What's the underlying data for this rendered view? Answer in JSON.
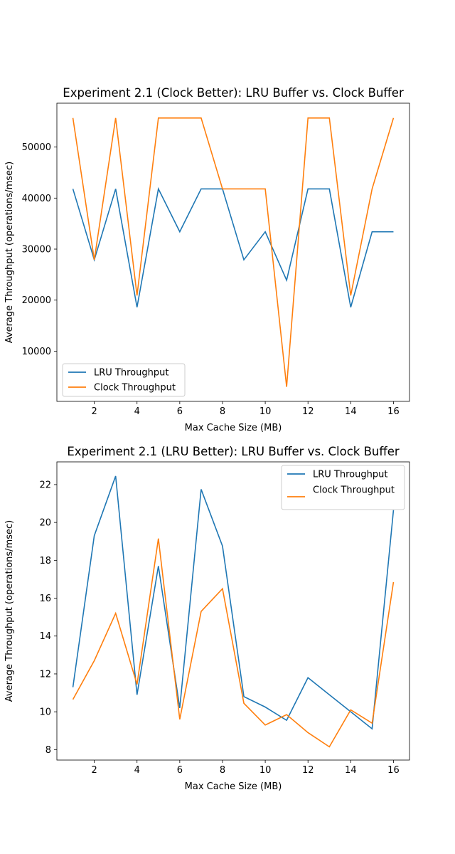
{
  "colors": {
    "lru": "#1f77b4",
    "clock": "#ff7f0e"
  },
  "chart_data": [
    {
      "type": "line",
      "title": "Experiment 2.1 (Clock Better): LRU Buffer vs. Clock Buffer",
      "xlabel": "Max Cache Size (MB)",
      "ylabel": "Average Throughput (operations/msec)",
      "x": [
        1,
        2,
        3,
        4,
        5,
        6,
        7,
        8,
        9,
        10,
        11,
        12,
        13,
        14,
        15,
        16
      ],
      "xticks": [
        2,
        4,
        6,
        8,
        10,
        12,
        14,
        16
      ],
      "yticks": [
        10000,
        20000,
        30000,
        40000,
        50000
      ],
      "xlim": [
        0.25,
        16.75
      ],
      "ylim": [
        150,
        58600
      ],
      "legend_position": "lower-left",
      "grid": false,
      "series": [
        {
          "name": "LRU Throughput",
          "color": "#1f77b4",
          "values": [
            41800,
            27900,
            41800,
            18600,
            41800,
            33400,
            41800,
            41800,
            27900,
            33400,
            23900,
            41800,
            41800,
            18600,
            33400,
            33400
          ]
        },
        {
          "name": "Clock Throughput",
          "color": "#ff7f0e",
          "values": [
            55700,
            27900,
            55700,
            20900,
            55700,
            55700,
            55700,
            41800,
            41800,
            41800,
            3000,
            55700,
            55700,
            20900,
            41800,
            55700
          ]
        }
      ]
    },
    {
      "type": "line",
      "title": "Experiment 2.1 (LRU Better): LRU Buffer vs. Clock Buffer",
      "xlabel": "Max Cache Size (MB)",
      "ylabel": "Average Throughput (operations/msec)",
      "x": [
        1,
        2,
        3,
        4,
        5,
        6,
        7,
        8,
        9,
        10,
        11,
        12,
        13,
        14,
        15,
        16
      ],
      "xticks": [
        2,
        4,
        6,
        8,
        10,
        12,
        14,
        16
      ],
      "yticks": [
        8,
        10,
        12,
        14,
        16,
        18,
        20,
        22
      ],
      "xlim": [
        0.25,
        16.75
      ],
      "ylim": [
        7.45,
        23.2
      ],
      "legend_position": "upper-right",
      "grid": false,
      "series": [
        {
          "name": "LRU Throughput",
          "color": "#1f77b4",
          "values": [
            11.3,
            19.3,
            22.45,
            10.9,
            17.7,
            10.2,
            21.75,
            18.75,
            10.8,
            10.25,
            9.55,
            11.8,
            10.9,
            10.0,
            9.1,
            20.65
          ]
        },
        {
          "name": "Clock Throughput",
          "color": "#ff7f0e",
          "values": [
            10.65,
            12.7,
            15.2,
            11.45,
            19.15,
            9.6,
            15.3,
            16.5,
            10.45,
            9.3,
            9.85,
            8.9,
            8.15,
            10.1,
            9.4,
            16.85
          ]
        }
      ]
    }
  ]
}
